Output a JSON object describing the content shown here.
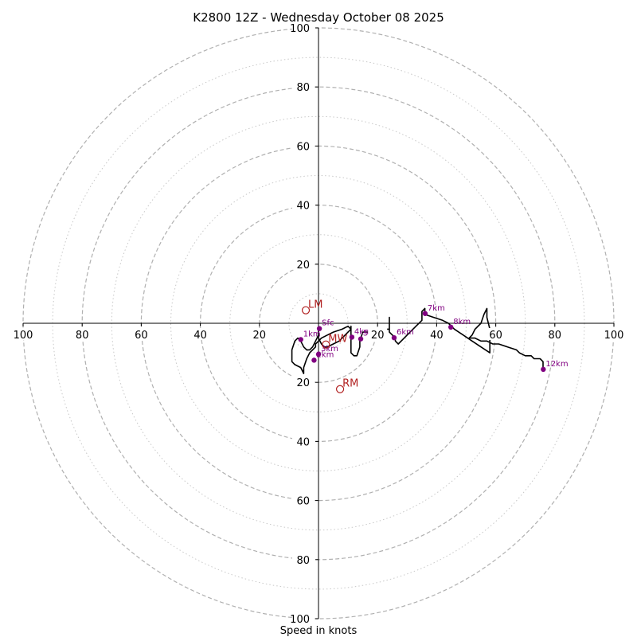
{
  "chart_data": {
    "type": "hodograph",
    "title": "K2800 12Z - Wednesday October 08 2025",
    "xlabel": "Speed in knots",
    "axis_range": [
      -100,
      100
    ],
    "ring_major": [
      20,
      40,
      60,
      80,
      100
    ],
    "ring_minor": [
      10,
      30,
      50,
      70,
      90
    ],
    "x_tick_labels": [
      "100",
      "80",
      "60",
      "40",
      "20",
      "20",
      "40",
      "60",
      "80",
      "100"
    ],
    "x_tick_values": [
      -100,
      -80,
      -60,
      -40,
      -20,
      20,
      40,
      60,
      80,
      100
    ],
    "y_tick_labels": [
      "100",
      "80",
      "60",
      "40",
      "20",
      "20",
      "40",
      "60",
      "80",
      "100"
    ],
    "y_tick_values": [
      100,
      80,
      60,
      40,
      20,
      -20,
      -40,
      -60,
      -80,
      -100
    ],
    "colors": {
      "ring": "#b0b0b0",
      "axis": "#000000",
      "trace": "#000000",
      "height_marker": "#800080",
      "motion_marker": "#b22222"
    },
    "trace": [
      [
        0,
        -4
      ],
      [
        0,
        -5
      ],
      [
        1,
        -7
      ],
      [
        2,
        -8
      ],
      [
        3,
        -8
      ],
      [
        5,
        -7
      ],
      [
        7,
        -6
      ],
      [
        8,
        -5
      ],
      [
        9,
        -4
      ],
      [
        10,
        -3
      ],
      [
        11,
        -2
      ],
      [
        11,
        -1
      ],
      [
        11,
        -2
      ],
      [
        11,
        -3
      ],
      [
        11,
        -5
      ],
      [
        11,
        -7
      ],
      [
        11,
        -9
      ],
      [
        11,
        -10
      ],
      [
        12,
        -11
      ],
      [
        13,
        -11
      ],
      [
        14,
        -8
      ],
      [
        14,
        -6
      ],
      [
        15,
        -3
      ],
      [
        17,
        -3
      ],
      [
        20,
        -2
      ],
      [
        24,
        -2
      ],
      [
        24,
        2
      ],
      [
        24,
        -2
      ],
      [
        24,
        -3
      ],
      [
        25,
        -4
      ],
      [
        26,
        -5
      ],
      [
        26,
        -6
      ],
      [
        27,
        -7
      ],
      [
        29,
        -5
      ],
      [
        31,
        -3
      ],
      [
        33,
        -1
      ],
      [
        35,
        1
      ],
      [
        35,
        4
      ],
      [
        36,
        5
      ],
      [
        36,
        3
      ],
      [
        39,
        2
      ],
      [
        42,
        1
      ],
      [
        44,
        0
      ],
      [
        46,
        -2
      ],
      [
        49,
        -4
      ],
      [
        52,
        -6
      ],
      [
        55,
        -8
      ],
      [
        58,
        -10
      ],
      [
        58,
        -6
      ],
      [
        58,
        -2
      ],
      [
        57,
        2
      ],
      [
        57,
        4
      ],
      [
        57,
        5
      ],
      [
        56,
        3
      ],
      [
        55,
        0
      ],
      [
        53,
        -2
      ],
      [
        52,
        -4
      ],
      [
        51,
        -5
      ],
      [
        53,
        -5
      ],
      [
        55,
        -6
      ],
      [
        57,
        -6
      ],
      [
        59,
        -7
      ],
      [
        61,
        -7
      ],
      [
        64,
        -8
      ],
      [
        67,
        -9
      ],
      [
        68,
        -10
      ],
      [
        70,
        -11
      ],
      [
        72,
        -11
      ],
      [
        73,
        -12
      ],
      [
        75,
        -12
      ],
      [
        76,
        -13
      ],
      [
        76,
        -14
      ],
      [
        76,
        -16
      ]
    ],
    "trace_low": [
      [
        0,
        -2
      ],
      [
        0,
        -4
      ],
      [
        -1,
        -6
      ],
      [
        -2,
        -8
      ],
      [
        -3,
        -9
      ],
      [
        -4,
        -9
      ],
      [
        -5,
        -8
      ],
      [
        -6,
        -6
      ],
      [
        -7,
        -5
      ],
      [
        -8,
        -6
      ],
      [
        -9,
        -9
      ],
      [
        -9,
        -12
      ],
      [
        -9,
        -13
      ],
      [
        -8,
        -14
      ],
      [
        -6,
        -15
      ],
      [
        -5,
        -17
      ],
      [
        -5,
        -15
      ],
      [
        -4,
        -12
      ],
      [
        -3,
        -10
      ],
      [
        -2,
        -9
      ],
      [
        -1,
        -8
      ],
      [
        -1,
        -7
      ],
      [
        0,
        -6
      ],
      [
        1,
        -5
      ],
      [
        3,
        -4
      ],
      [
        5,
        -3
      ],
      [
        8,
        -2
      ],
      [
        10,
        -1
      ],
      [
        11,
        -2
      ]
    ],
    "height_markers": [
      {
        "label": "1km",
        "u": -6,
        "v": -5.5
      },
      {
        "label": "Sfc",
        "u": 0.3,
        "v": -1.8
      },
      {
        "label": "2km",
        "u": -1.5,
        "v": -12.5
      },
      {
        "label": "3km",
        "u": 0,
        "v": -10.5
      },
      {
        "label": "4km",
        "u": 11.3,
        "v": -4.7
      },
      {
        "label": "5km",
        "u": 14.3,
        "v": -5.3
      },
      {
        "label": "6km",
        "u": 25.6,
        "v": -4.9
      },
      {
        "label": "7km",
        "u": 36.1,
        "v": 3.3
      },
      {
        "label": "8km",
        "u": 44.8,
        "v": -1.3
      },
      {
        "label": "12km",
        "u": 76.1,
        "v": -15.6
      }
    ],
    "motion_markers": [
      {
        "label": "LM",
        "u": -4.3,
        "v": 4.4
      },
      {
        "label": "MW",
        "u": 2.5,
        "v": -7.2
      },
      {
        "label": "RM",
        "u": 7.3,
        "v": -22.3
      }
    ]
  }
}
